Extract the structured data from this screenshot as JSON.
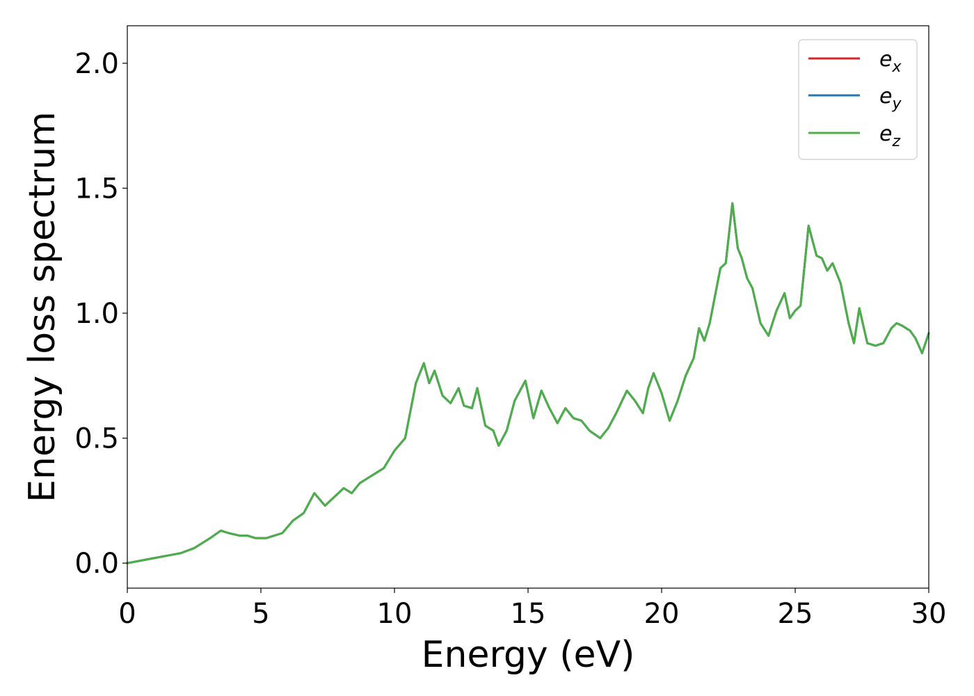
{
  "chart_data": {
    "type": "line",
    "title": "",
    "xlabel": "Energy (eV)",
    "ylabel": "Energy loss spectrum",
    "xlim": [
      0,
      30
    ],
    "ylim": [
      -0.1,
      2.15
    ],
    "xticks": [
      0,
      5,
      10,
      15,
      20,
      25,
      30
    ],
    "xtick_labels": [
      "0",
      "5",
      "10",
      "15",
      "20",
      "25",
      "30"
    ],
    "yticks": [
      0.0,
      0.5,
      1.0,
      1.5,
      2.0
    ],
    "ytick_labels": [
      "0.0",
      "0.5",
      "1.0",
      "1.5",
      "2.0"
    ],
    "grid": false,
    "legend_position": "top-right",
    "legend": [
      {
        "base": "e",
        "sub": "x",
        "color": "#d62728"
      },
      {
        "base": "e",
        "sub": "y",
        "color": "#1f77b4"
      },
      {
        "base": "e",
        "sub": "z",
        "color": "#4daf4a"
      }
    ],
    "x": [
      0,
      0.5,
      1.0,
      1.5,
      2.0,
      2.5,
      2.8,
      3.1,
      3.5,
      3.8,
      4.2,
      4.5,
      4.8,
      5.2,
      5.5,
      5.8,
      6.2,
      6.6,
      7.0,
      7.4,
      7.8,
      8.1,
      8.4,
      8.7,
      9.0,
      9.3,
      9.6,
      10.0,
      10.4,
      10.8,
      11.1,
      11.3,
      11.5,
      11.8,
      12.1,
      12.4,
      12.6,
      12.9,
      13.1,
      13.4,
      13.7,
      13.9,
      14.2,
      14.5,
      14.9,
      15.2,
      15.5,
      15.8,
      16.1,
      16.4,
      16.7,
      17.0,
      17.3,
      17.7,
      18.0,
      18.3,
      18.7,
      19.0,
      19.3,
      19.5,
      19.7,
      20.0,
      20.3,
      20.6,
      20.9,
      21.2,
      21.4,
      21.6,
      21.8,
      22.0,
      22.2,
      22.4,
      22.65,
      22.85,
      23.0,
      23.2,
      23.4,
      23.7,
      24.0,
      24.3,
      24.6,
      24.8,
      25.0,
      25.2,
      25.5,
      25.8,
      26.0,
      26.2,
      26.4,
      26.7,
      27.0,
      27.2,
      27.4,
      27.7,
      28.0,
      28.3,
      28.6,
      28.8,
      29.0,
      29.3,
      29.5,
      29.75,
      30.0
    ],
    "series": [
      {
        "name": "e_x",
        "color": "#d62728",
        "values": [
          0.0,
          0.01,
          0.02,
          0.03,
          0.04,
          0.06,
          0.08,
          0.1,
          0.13,
          0.12,
          0.11,
          0.11,
          0.1,
          0.1,
          0.11,
          0.12,
          0.17,
          0.2,
          0.28,
          0.23,
          0.27,
          0.3,
          0.28,
          0.32,
          0.34,
          0.36,
          0.38,
          0.45,
          0.5,
          0.72,
          0.8,
          0.72,
          0.77,
          0.67,
          0.64,
          0.7,
          0.63,
          0.62,
          0.7,
          0.55,
          0.53,
          0.47,
          0.53,
          0.65,
          0.73,
          0.58,
          0.69,
          0.62,
          0.56,
          0.62,
          0.58,
          0.57,
          0.53,
          0.5,
          0.54,
          0.6,
          0.69,
          0.65,
          0.6,
          0.7,
          0.76,
          0.68,
          0.57,
          0.65,
          0.75,
          0.82,
          0.94,
          0.89,
          0.96,
          1.07,
          1.18,
          1.2,
          1.44,
          1.26,
          1.22,
          1.14,
          1.1,
          0.96,
          0.91,
          1.01,
          1.08,
          0.98,
          1.01,
          1.03,
          1.35,
          1.23,
          1.22,
          1.17,
          1.2,
          1.12,
          0.96,
          0.88,
          1.02,
          0.88,
          0.87,
          0.88,
          0.94,
          0.96,
          0.95,
          0.93,
          0.9,
          0.84,
          0.92
        ]
      },
      {
        "name": "e_y",
        "color": "#1f77b4",
        "values": [
          0.0,
          0.01,
          0.02,
          0.03,
          0.04,
          0.06,
          0.08,
          0.1,
          0.13,
          0.12,
          0.11,
          0.11,
          0.1,
          0.1,
          0.11,
          0.12,
          0.17,
          0.2,
          0.28,
          0.23,
          0.27,
          0.3,
          0.28,
          0.32,
          0.34,
          0.36,
          0.38,
          0.45,
          0.5,
          0.72,
          0.8,
          0.72,
          0.77,
          0.67,
          0.64,
          0.7,
          0.63,
          0.62,
          0.7,
          0.55,
          0.53,
          0.47,
          0.53,
          0.65,
          0.73,
          0.58,
          0.69,
          0.62,
          0.56,
          0.62,
          0.58,
          0.57,
          0.53,
          0.5,
          0.54,
          0.6,
          0.69,
          0.65,
          0.6,
          0.7,
          0.76,
          0.68,
          0.57,
          0.65,
          0.75,
          0.82,
          0.94,
          0.89,
          0.96,
          1.07,
          1.18,
          1.2,
          1.44,
          1.26,
          1.22,
          1.14,
          1.1,
          0.96,
          0.91,
          1.01,
          1.08,
          0.98,
          1.01,
          1.03,
          1.35,
          1.23,
          1.22,
          1.17,
          1.2,
          1.12,
          0.96,
          0.88,
          1.02,
          0.88,
          0.87,
          0.88,
          0.94,
          0.96,
          0.95,
          0.93,
          0.9,
          0.84,
          0.92
        ]
      },
      {
        "name": "e_z",
        "color": "#4daf4a",
        "values": [
          0.0,
          0.01,
          0.02,
          0.03,
          0.04,
          0.06,
          0.08,
          0.1,
          0.13,
          0.12,
          0.11,
          0.11,
          0.1,
          0.1,
          0.11,
          0.12,
          0.17,
          0.2,
          0.28,
          0.23,
          0.27,
          0.3,
          0.28,
          0.32,
          0.34,
          0.36,
          0.38,
          0.45,
          0.5,
          0.72,
          0.8,
          0.72,
          0.77,
          0.67,
          0.64,
          0.7,
          0.63,
          0.62,
          0.7,
          0.55,
          0.53,
          0.47,
          0.53,
          0.65,
          0.73,
          0.58,
          0.69,
          0.62,
          0.56,
          0.62,
          0.58,
          0.57,
          0.53,
          0.5,
          0.54,
          0.6,
          0.69,
          0.65,
          0.6,
          0.7,
          0.76,
          0.68,
          0.57,
          0.65,
          0.75,
          0.82,
          0.94,
          0.89,
          0.96,
          1.07,
          1.18,
          1.2,
          1.44,
          1.26,
          1.22,
          1.14,
          1.1,
          0.96,
          0.91,
          1.01,
          1.08,
          0.98,
          1.01,
          1.03,
          1.35,
          1.23,
          1.22,
          1.17,
          1.2,
          1.12,
          0.96,
          0.88,
          1.02,
          0.88,
          0.87,
          0.88,
          0.94,
          0.96,
          0.95,
          0.93,
          0.9,
          0.84,
          0.92
        ]
      }
    ]
  }
}
